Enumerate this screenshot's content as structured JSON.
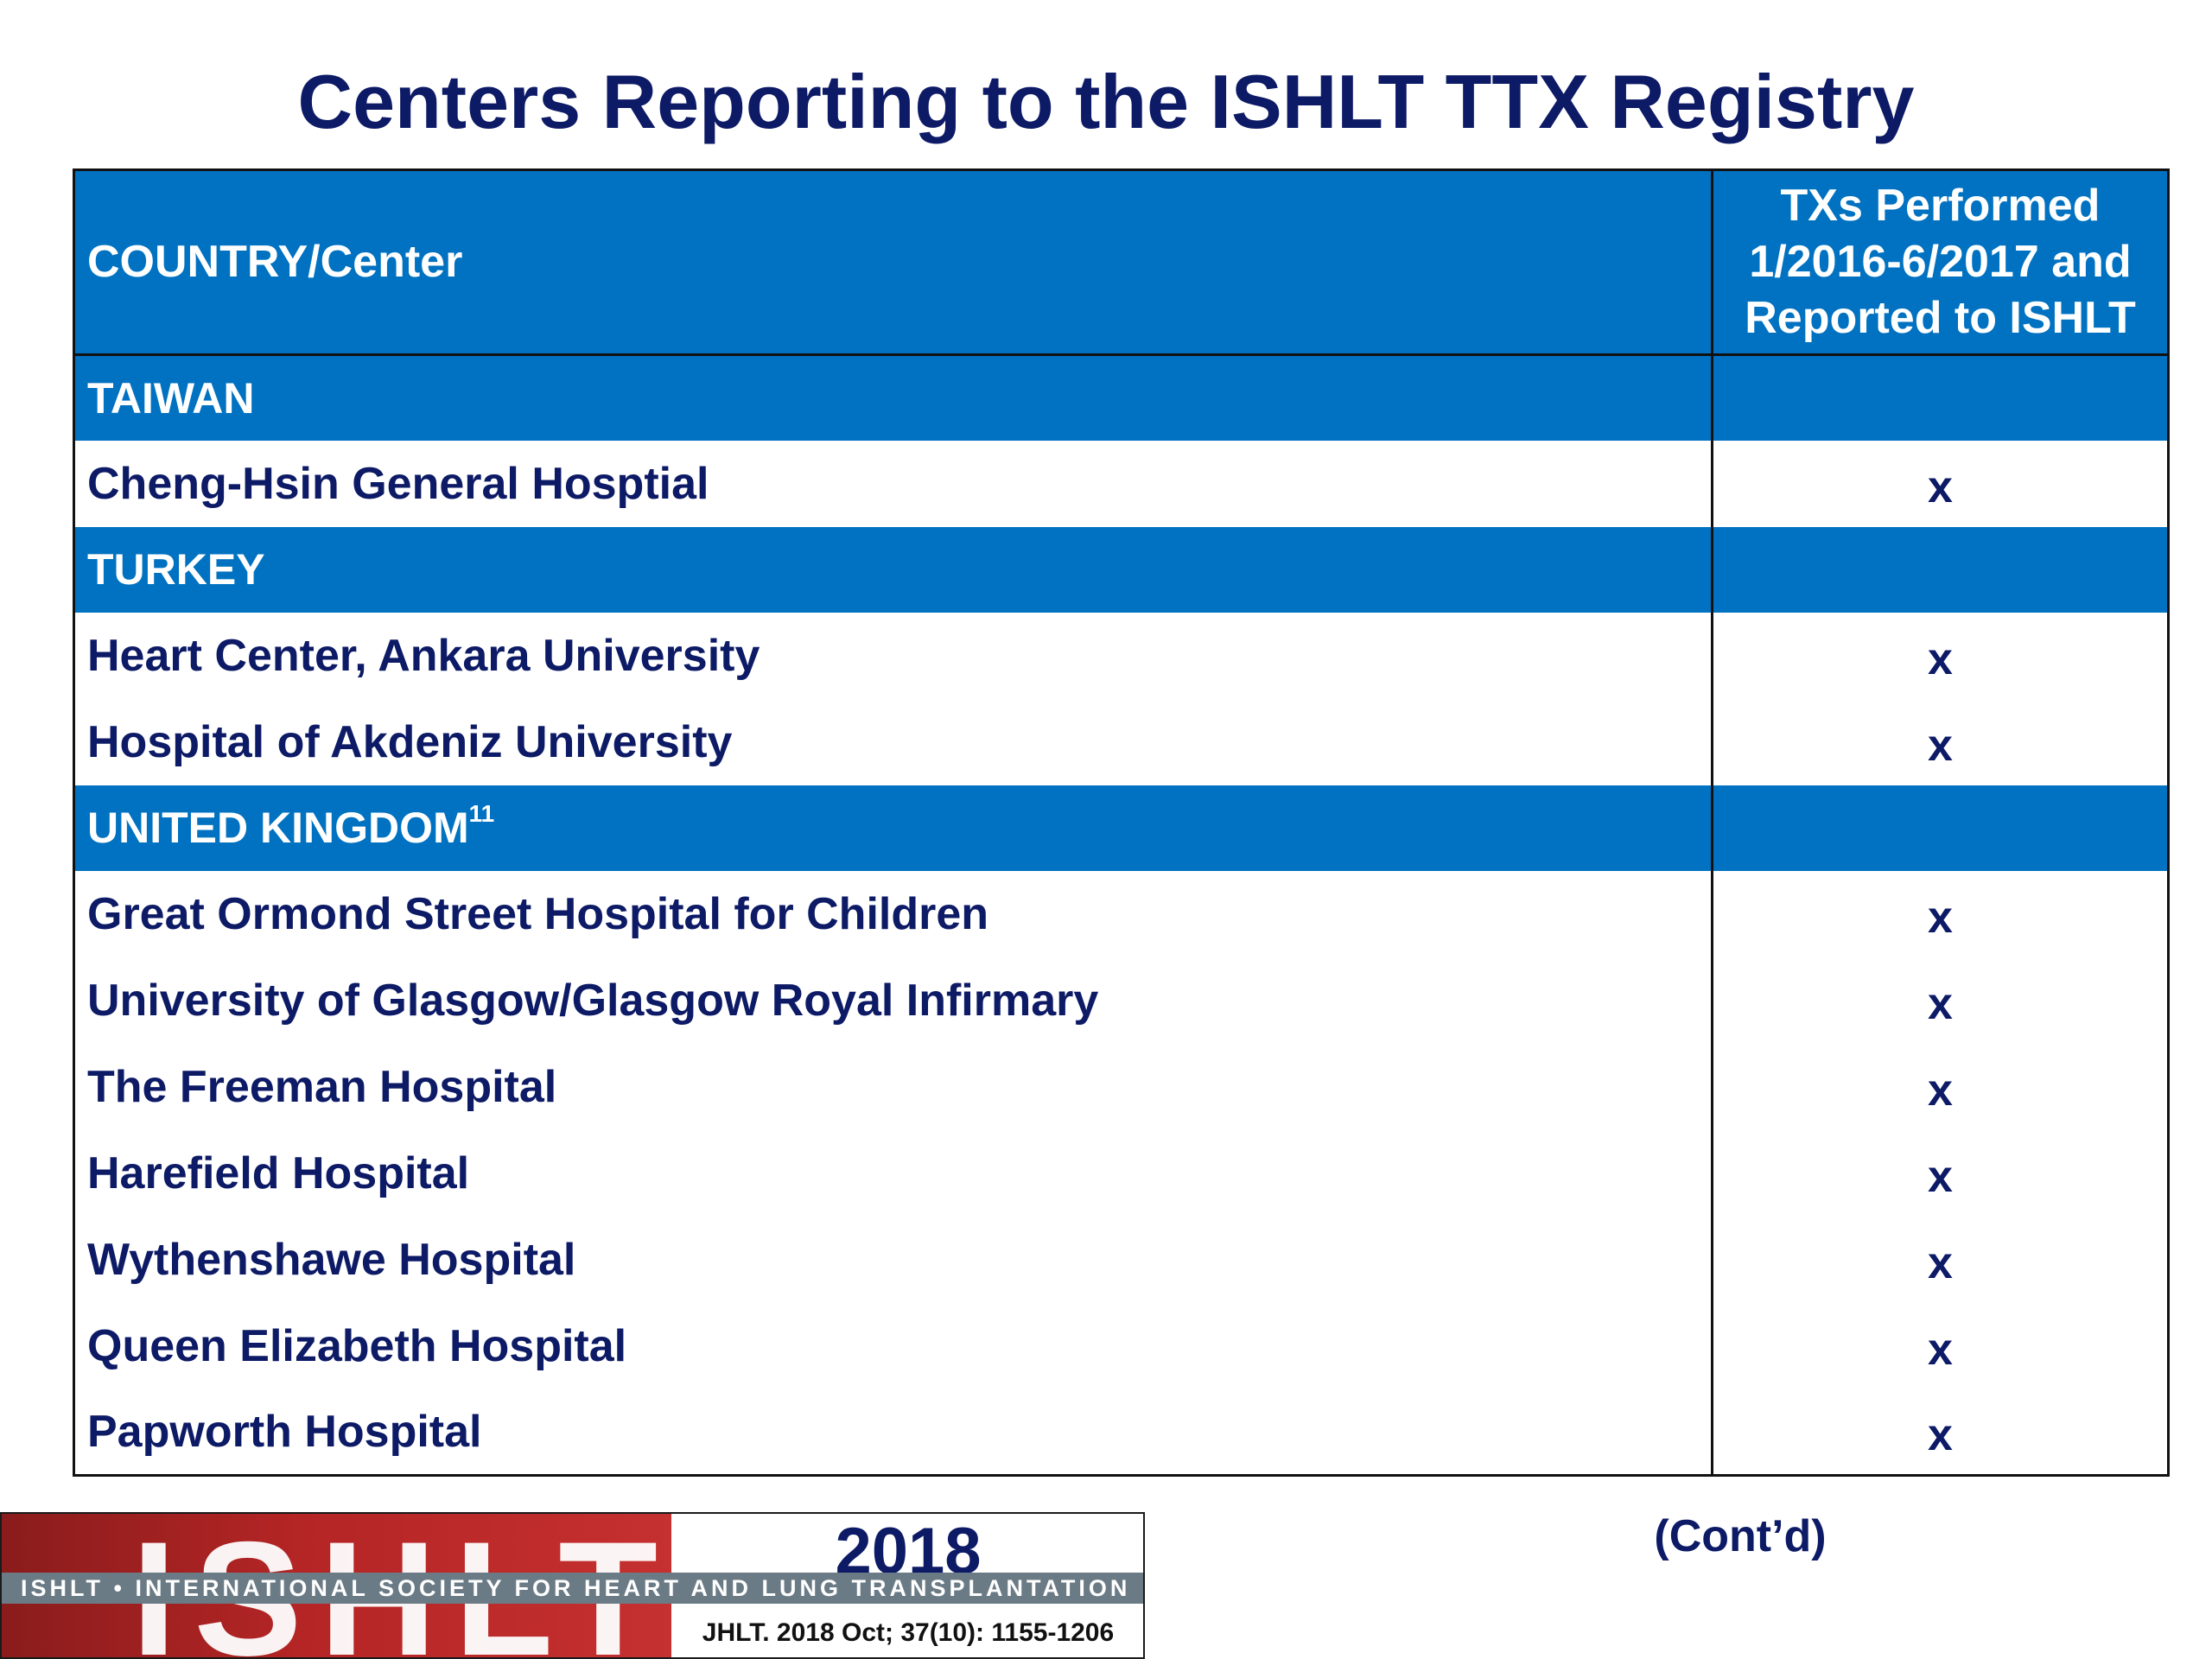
{
  "title": "Centers Reporting to the ISHLT TTX Registry",
  "table": {
    "header": {
      "col1": "COUNTRY/Center",
      "col2_lines": [
        "TXs Performed",
        "1/2016-6/2017 and",
        "Reported to ISHLT"
      ]
    },
    "rows": [
      {
        "type": "country",
        "name": "TAIWAN",
        "sup": "",
        "mark": ""
      },
      {
        "type": "center",
        "name": "Cheng-Hsin General Hosptial",
        "sup": "",
        "mark": "x"
      },
      {
        "type": "country",
        "name": "TURKEY",
        "sup": "",
        "mark": ""
      },
      {
        "type": "center",
        "name": "Heart Center, Ankara University",
        "sup": "",
        "mark": "x"
      },
      {
        "type": "center",
        "name": "Hospital of Akdeniz University",
        "sup": "",
        "mark": "x"
      },
      {
        "type": "country",
        "name": "UNITED KINGDOM",
        "sup": "11",
        "mark": ""
      },
      {
        "type": "center",
        "name": "Great Ormond Street Hospital for Children",
        "sup": "",
        "mark": "x"
      },
      {
        "type": "center",
        "name": "University of Glasgow/Glasgow Royal Infirmary",
        "sup": "",
        "mark": "x"
      },
      {
        "type": "center",
        "name": "The Freeman Hospital",
        "sup": "",
        "mark": "x"
      },
      {
        "type": "center",
        "name": "Harefield Hospital",
        "sup": "",
        "mark": "x"
      },
      {
        "type": "center",
        "name": "Wythenshawe Hospital",
        "sup": "",
        "mark": "x"
      },
      {
        "type": "center",
        "name": "Queen Elizabeth Hospital",
        "sup": "",
        "mark": "x"
      },
      {
        "type": "center",
        "name": "Papworth Hospital",
        "sup": "",
        "mark": "x"
      }
    ]
  },
  "footer": {
    "logo_text": "ISHLT",
    "year": "2018",
    "society_band": "ISHLT • INTERNATIONAL SOCIETY FOR HEART AND LUNG TRANSPLANTATION",
    "citation": "JHLT. 2018 Oct; 37(10): 1155-1206"
  },
  "contd": "(Cont’d)",
  "colors": {
    "title_navy": "#0d1a66",
    "header_blue": "#0072c1",
    "logo_red": "#b52525",
    "band_gray": "#6b7b86"
  }
}
